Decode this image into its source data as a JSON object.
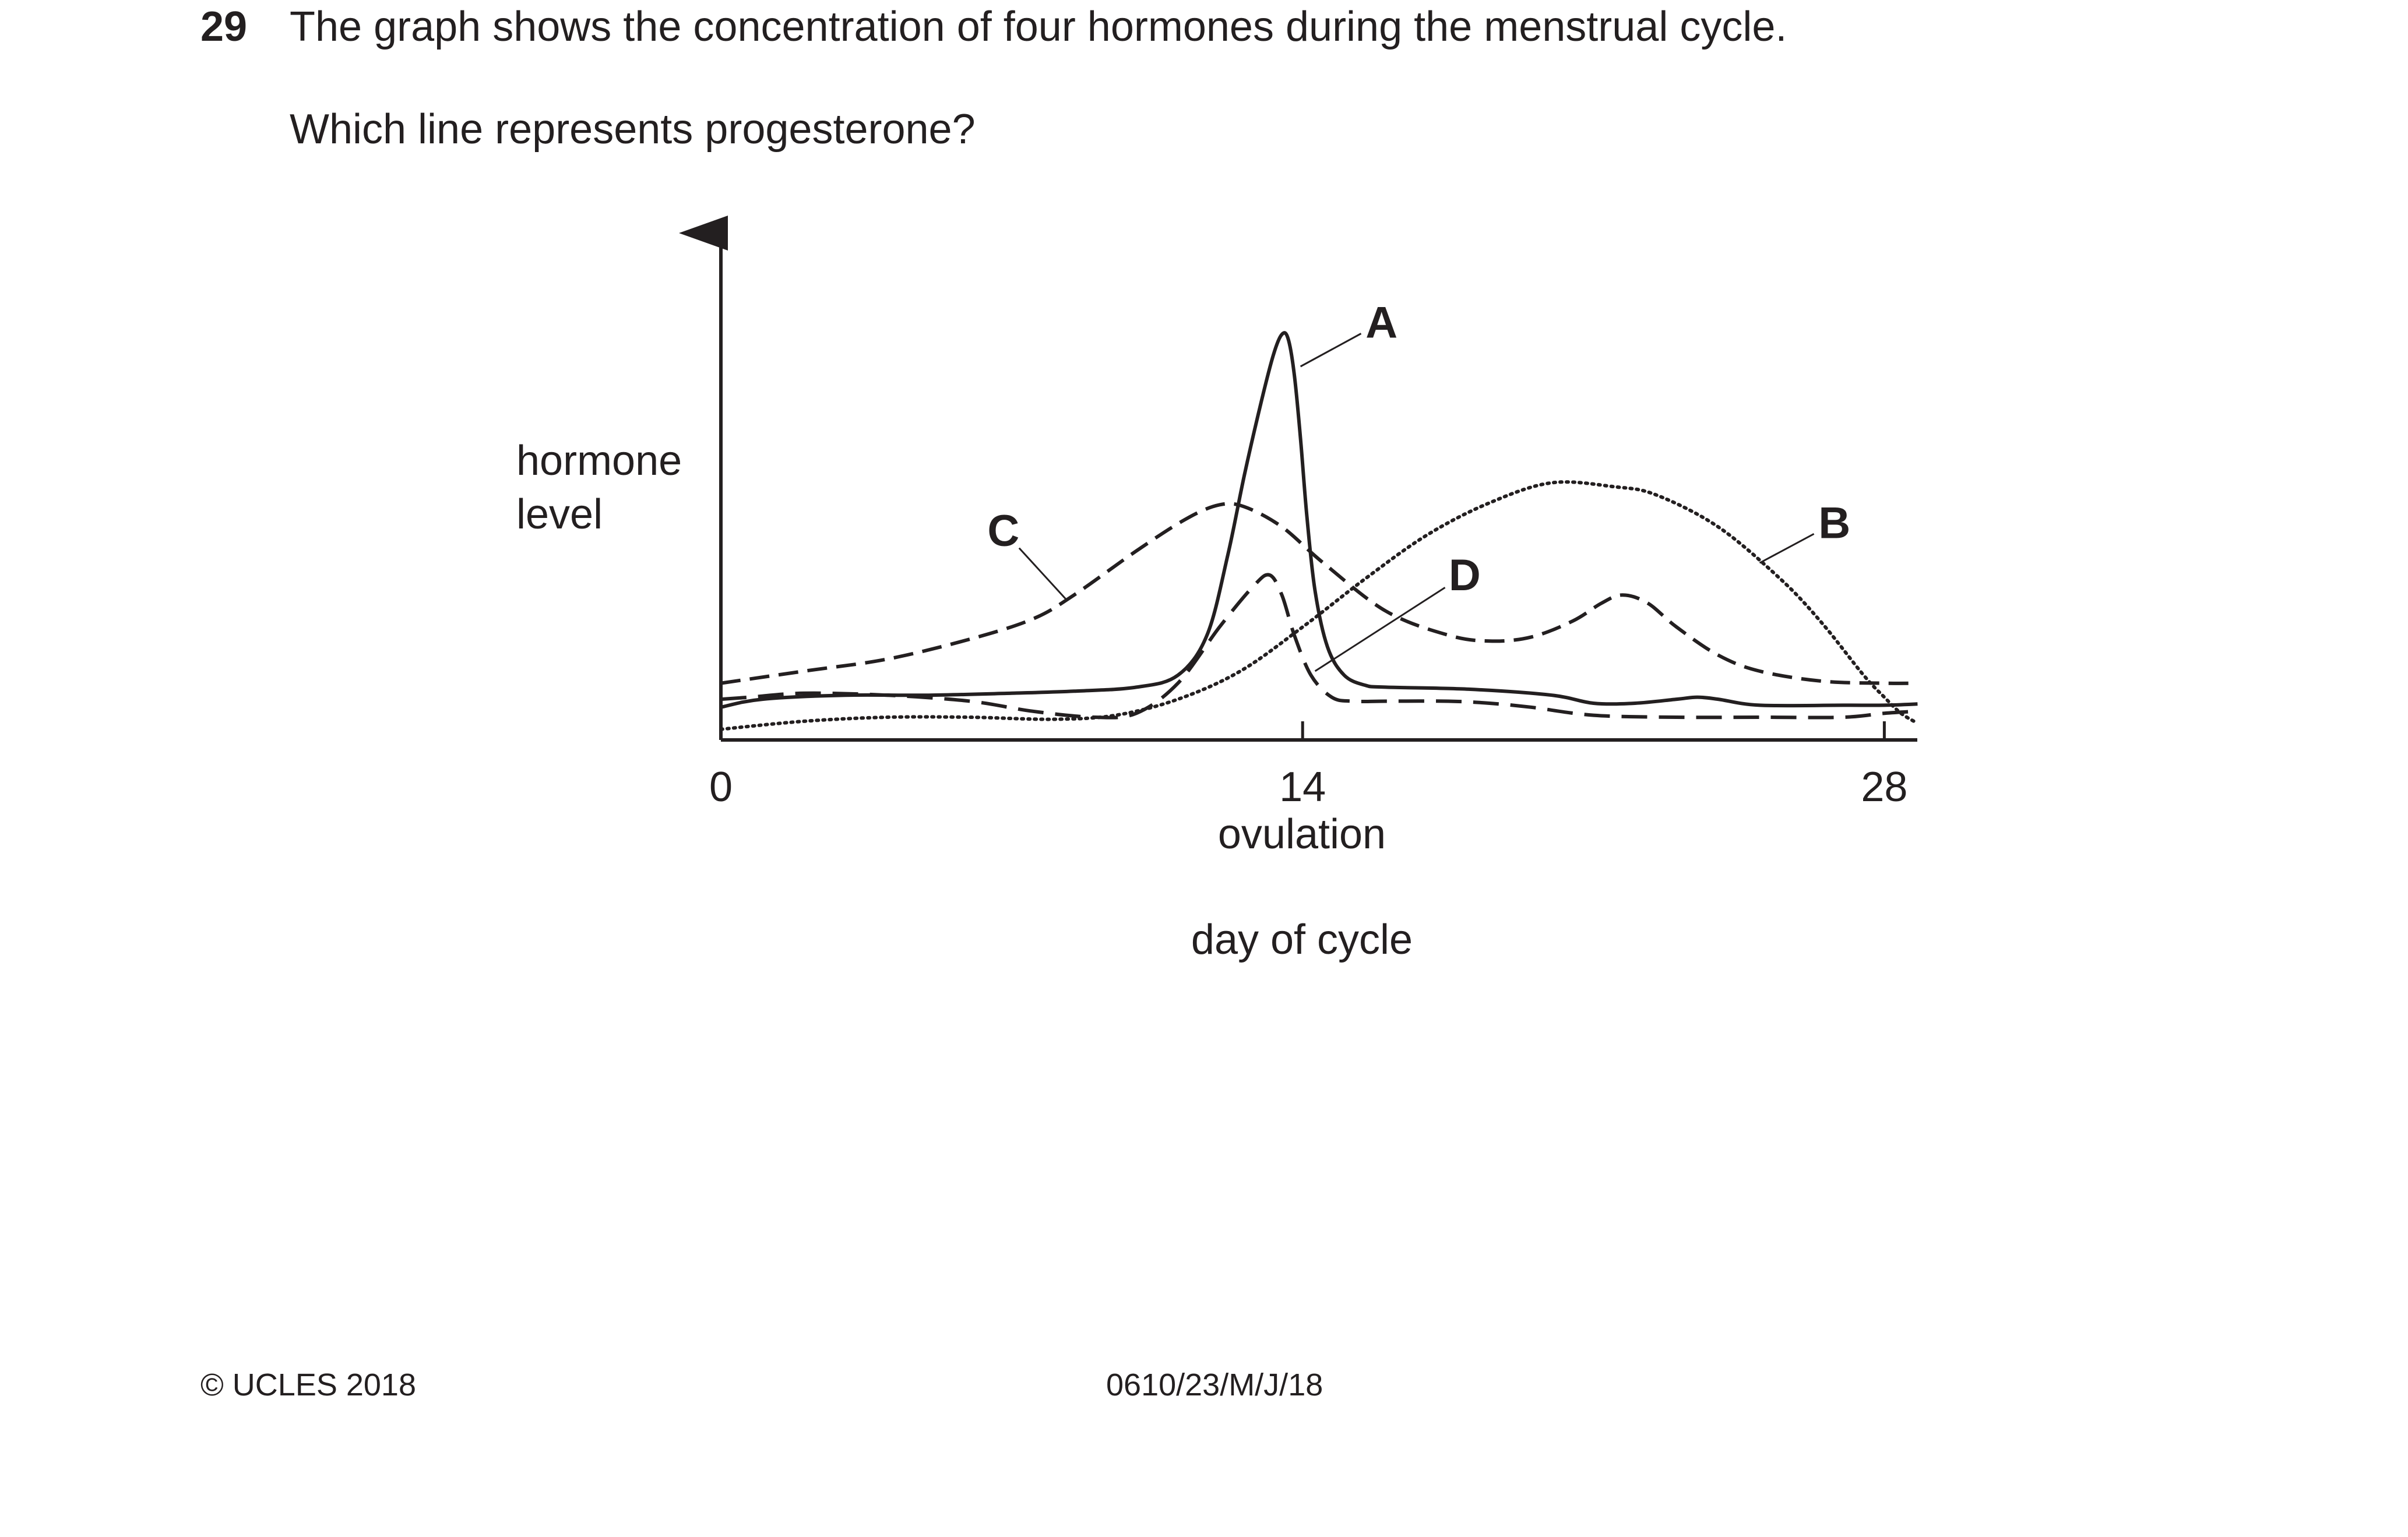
{
  "question": {
    "number": "29",
    "text": "The graph shows the concentration of four hormones during the menstrual cycle.",
    "prompt": "Which line represents progesterone?"
  },
  "footer": {
    "copyright": "© UCLES 2018",
    "code": "0610/23/M/J/18"
  },
  "chart_data": {
    "type": "line",
    "title": "",
    "xlabel": "day of cycle",
    "ylabel_lines": [
      "hormone",
      "level"
    ],
    "x_ticks": [
      0,
      14,
      28
    ],
    "x_tick_labels": [
      "0",
      "14",
      "28"
    ],
    "x_annotation": "ovulation",
    "xlim": [
      0,
      28.8
    ],
    "ylim": [
      0,
      10
    ],
    "grid": false,
    "legend": "none",
    "series": [
      {
        "name": "A",
        "line_style": "solid",
        "x": [
          0,
          1,
          3,
          5,
          7,
          8.5,
          10,
          11,
          11.7,
          12.2,
          12.6,
          13.0,
          13.3,
          13.5,
          13.65,
          13.8,
          13.95,
          14.1,
          14.3,
          14.6,
          15.0,
          15.5,
          16,
          18,
          20,
          21,
          22,
          23,
          23.5,
          24,
          25,
          27,
          28,
          28.8
        ],
        "y": [
          0.7,
          0.9,
          1.0,
          1.0,
          1.05,
          1.1,
          1.2,
          1.5,
          2.5,
          4.5,
          6.5,
          8.3,
          9.5,
          10.0,
          9.9,
          9.0,
          7.4,
          5.5,
          3.6,
          2.2,
          1.5,
          1.25,
          1.2,
          1.15,
          1.0,
          0.8,
          0.8,
          0.9,
          0.95,
          0.9,
          0.75,
          0.75,
          0.75,
          0.78
        ]
      },
      {
        "name": "B",
        "line_style": "dotted",
        "x": [
          0,
          2,
          4,
          6,
          8,
          9.5,
          11,
          12.5,
          14,
          15.5,
          17,
          18.5,
          20,
          21.5,
          22.5,
          24,
          25.5,
          26.5,
          27.5,
          28,
          28.4,
          28.8
        ],
        "y": [
          0.15,
          0.35,
          0.45,
          0.45,
          0.4,
          0.5,
          0.9,
          1.6,
          2.7,
          3.9,
          5.0,
          5.8,
          6.3,
          6.2,
          6.0,
          5.2,
          3.9,
          2.8,
          1.5,
          0.95,
          0.55,
          0.3
        ]
      },
      {
        "name": "C",
        "line_style": "dashed",
        "x": [
          0,
          2,
          4,
          6,
          7.5,
          8.5,
          10,
          11.2,
          12,
          12.6,
          13.5,
          14.5,
          16,
          17.5,
          18.5,
          19.5,
          20.5,
          21.2,
          21.7,
          22.3,
          23,
          24,
          25,
          26.5,
          28,
          28.8
        ],
        "y": [
          1.3,
          1.6,
          1.9,
          2.4,
          2.9,
          3.5,
          4.6,
          5.4,
          5.75,
          5.7,
          5.2,
          4.3,
          3.1,
          2.5,
          2.35,
          2.45,
          2.85,
          3.3,
          3.5,
          3.3,
          2.7,
          2.0,
          1.6,
          1.35,
          1.3,
          1.3
        ]
      },
      {
        "name": "D",
        "line_style": "long-dashed",
        "x": [
          0,
          0.7,
          2,
          4,
          6,
          7.5,
          9,
          10,
          11,
          12,
          12.8,
          13.2,
          13.5,
          13.8,
          14.2,
          14.7,
          15.2,
          16,
          17.5,
          18.5,
          19.5,
          21,
          23,
          25,
          27,
          28,
          28.8
        ],
        "y": [
          0.9,
          0.95,
          1.05,
          1.0,
          0.85,
          0.6,
          0.45,
          0.55,
          1.3,
          2.7,
          3.7,
          4.0,
          3.5,
          2.5,
          1.5,
          0.95,
          0.85,
          0.85,
          0.85,
          0.8,
          0.7,
          0.5,
          0.45,
          0.45,
          0.45,
          0.55,
          0.6
        ]
      }
    ],
    "annotations": [
      {
        "text": "A",
        "target_series": "A",
        "point": [
          13.95,
          9.2
        ],
        "label_at": [
          15.9,
          10.3
        ]
      },
      {
        "text": "B",
        "target_series": "B",
        "point": [
          25.0,
          4.3
        ],
        "label_at": [
          26.8,
          5.3
        ]
      },
      {
        "text": "C",
        "target_series": "C",
        "point": [
          8.3,
          3.4
        ],
        "label_at": [
          6.8,
          5.1
        ]
      },
      {
        "text": "D",
        "target_series": "D",
        "point": [
          14.3,
          1.6
        ],
        "label_at": [
          17.9,
          4.0
        ]
      }
    ]
  }
}
